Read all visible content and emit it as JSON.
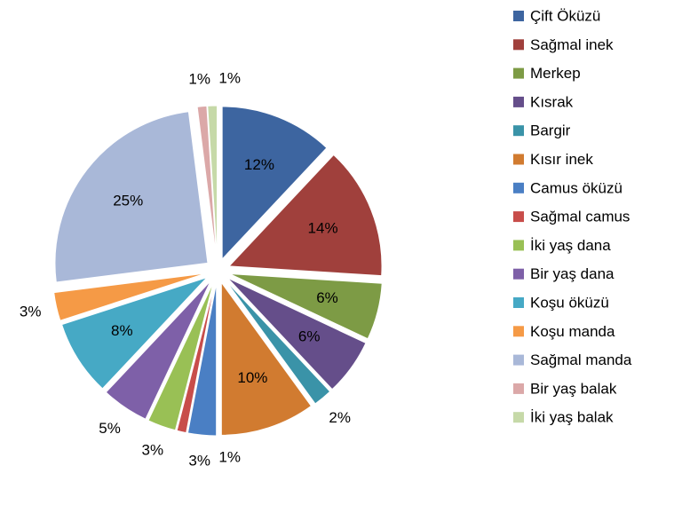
{
  "chart_data": {
    "type": "pie",
    "categories": [
      "Çift Öküzü",
      "Sağmal inek",
      "Merkep",
      "Kısrak",
      "Bargir",
      "Kısır inek",
      "Camus öküzü",
      "Sağmal camus",
      "İki yaş dana",
      "Bir yaş dana",
      "Koşu öküzü",
      "Koşu manda",
      "Sağmal manda",
      "Bir yaş balak",
      "İki yaş balak"
    ],
    "values": [
      12,
      14,
      6,
      6,
      2,
      10,
      3,
      1,
      3,
      5,
      8,
      3,
      25,
      1,
      1
    ],
    "value_labels": [
      "12%",
      "14%",
      "6%",
      "6%",
      "2%",
      "10%",
      "3%",
      "1%",
      "3%",
      "5%",
      "8%",
      "3%",
      "25%",
      "1%",
      "1%"
    ],
    "colors": [
      "#3d65a0",
      "#a0403c",
      "#7d9b45",
      "#654e8a",
      "#3a93a8",
      "#d17b30",
      "#4a7fc4",
      "#c84d4a",
      "#99c055",
      "#7e60a8",
      "#46a9c5",
      "#f59a46",
      "#a9b8d8",
      "#dba8a8",
      "#c6d9a8"
    ],
    "legend": "right"
  }
}
